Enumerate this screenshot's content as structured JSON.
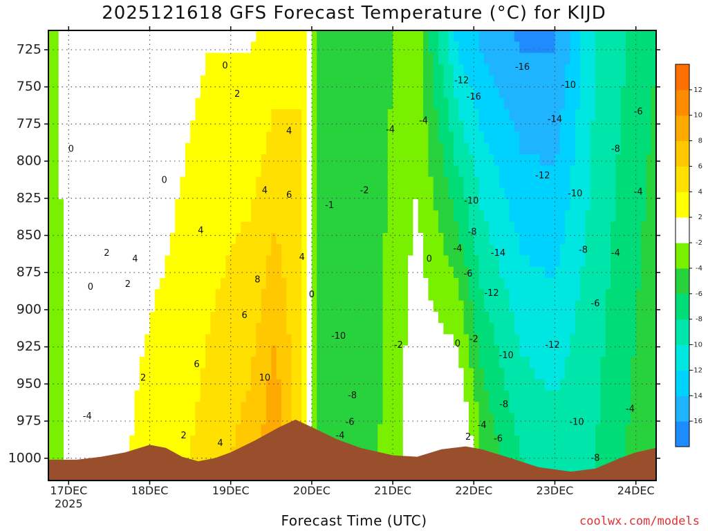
{
  "title": "2025121618 GFS Forecast Temperature (°C) for KIJD",
  "xlabel": "Forecast Time (UTC)",
  "credit": "coolwx.com/models",
  "colors": {
    "terrain": "#9a4f2c",
    "contour_positive": "#1a1a1a",
    "contour_zero": "#c0186c",
    "contour_negative": "#222222",
    "grid": "#555555"
  },
  "chart_data": {
    "type": "heatmap",
    "variable": "Temperature (°C)",
    "x_ticks": [
      "17DEC",
      "18DEC",
      "19DEC",
      "20DEC",
      "21DEC",
      "22DEC",
      "23DEC",
      "24DEC"
    ],
    "x_year": "2025",
    "y_ticks": [
      725,
      750,
      775,
      800,
      825,
      850,
      875,
      900,
      925,
      950,
      975,
      1000
    ],
    "y_range_hpa": [
      712,
      1015
    ],
    "x_range_days": [
      16.75,
      24.25
    ],
    "colorbar": {
      "levels": [
        -18,
        -16,
        -14,
        -12,
        -10,
        -8,
        -6,
        -4,
        -2,
        2,
        4,
        6,
        8,
        10,
        12,
        14
      ],
      "labels": [
        "12",
        "10",
        "8",
        "6",
        "4",
        "2",
        "-2",
        "-4",
        "-6",
        "-8",
        "-10",
        "-12",
        "-14",
        "-16"
      ],
      "colors": [
        "#1e8cff",
        "#1eb4ff",
        "#00d2ff",
        "#00e6e0",
        "#00e6aa",
        "#00dc78",
        "#28d23c",
        "#78f000",
        "#ffffff",
        "#ffff00",
        "#ffe000",
        "#ffc800",
        "#ffaa00",
        "#ff8c00",
        "#ff6e00"
      ]
    },
    "temperature_profile": [
      {
        "day": 16.75,
        "t_725": -3,
        "t_1000": -4
      },
      {
        "day": 17.25,
        "t_725": 1,
        "t_1000": 1
      },
      {
        "day": 17.75,
        "t_725": 1,
        "t_1000": 2
      },
      {
        "day": 18.25,
        "t_725": 1,
        "t_1000": 3
      },
      {
        "day": 18.75,
        "t_725": 2,
        "t_1000": 5
      },
      {
        "day": 19.25,
        "t_725": 2,
        "t_1000": 7
      },
      {
        "day": 19.55,
        "t_725": 3,
        "t_1000": 10
      },
      {
        "day": 19.9,
        "t_725": 4,
        "t_1000": 4
      },
      {
        "day": 20.1,
        "t_725": -6,
        "t_1000": -6
      },
      {
        "day": 20.5,
        "t_725": -6,
        "t_1000": -6
      },
      {
        "day": 21.0,
        "t_725": -4,
        "t_1000": -3
      },
      {
        "day": 21.3,
        "t_725": -3,
        "t_1000": 0
      },
      {
        "day": 21.8,
        "t_725": -12,
        "t_1000": 2
      },
      {
        "day": 22.1,
        "t_725": -14,
        "t_1000": -4
      },
      {
        "day": 22.6,
        "t_725": -16,
        "t_1000": -8
      },
      {
        "day": 23.0,
        "t_725": -16,
        "t_1000": -9
      },
      {
        "day": 23.5,
        "t_725": -10,
        "t_1000": -8
      },
      {
        "day": 24.25,
        "t_725": -6,
        "t_1000": -4
      }
    ],
    "contour_labels": [
      {
        "text": "0",
        "day": 17.03,
        "p": 792
      },
      {
        "text": "0",
        "day": 18.18,
        "p": 813
      },
      {
        "text": "0",
        "day": 18.93,
        "p": 736
      },
      {
        "text": "0",
        "day": 17.27,
        "p": 885
      },
      {
        "text": "2",
        "day": 17.47,
        "p": 862
      },
      {
        "text": "2",
        "day": 17.73,
        "p": 883
      },
      {
        "text": "2",
        "day": 17.92,
        "p": 946
      },
      {
        "text": "2",
        "day": 18.42,
        "p": 985
      },
      {
        "text": "2",
        "day": 19.08,
        "p": 755
      },
      {
        "text": "4",
        "day": 17.82,
        "p": 866
      },
      {
        "text": "4",
        "day": 18.63,
        "p": 847
      },
      {
        "text": "4",
        "day": 19.42,
        "p": 820
      },
      {
        "text": "4",
        "day": 19.72,
        "p": 780
      },
      {
        "text": "4",
        "day": 18.87,
        "p": 990
      },
      {
        "text": "4",
        "day": 19.88,
        "p": 865
      },
      {
        "text": "6",
        "day": 19.72,
        "p": 823
      },
      {
        "text": "6",
        "day": 18.58,
        "p": 937
      },
      {
        "text": "6",
        "day": 19.17,
        "p": 904
      },
      {
        "text": "8",
        "day": 19.33,
        "p": 880
      },
      {
        "text": "10",
        "day": 19.42,
        "p": 946
      },
      {
        "text": "0",
        "day": 20.0,
        "p": 890
      },
      {
        "text": "-4",
        "day": 17.23,
        "p": 972
      },
      {
        "text": "-10",
        "day": 20.33,
        "p": 918
      },
      {
        "text": "-8",
        "day": 20.5,
        "p": 958
      },
      {
        "text": "-6",
        "day": 20.47,
        "p": 976
      },
      {
        "text": "-4",
        "day": 20.35,
        "p": 985
      },
      {
        "text": "-4",
        "day": 20.97,
        "p": 779
      },
      {
        "text": "-2",
        "day": 20.65,
        "p": 820
      },
      {
        "text": "-1",
        "day": 20.22,
        "p": 830
      },
      {
        "text": "-2",
        "day": 21.07,
        "p": 924
      },
      {
        "text": "-4",
        "day": 21.38,
        "p": 773
      },
      {
        "text": "0",
        "day": 21.45,
        "p": 866
      },
      {
        "text": "0",
        "day": 21.8,
        "p": 923
      },
      {
        "text": "-2",
        "day": 22.0,
        "p": 920
      },
      {
        "text": "-12",
        "day": 21.85,
        "p": 746
      },
      {
        "text": "-16",
        "day": 22.0,
        "p": 757
      },
      {
        "text": "-16",
        "day": 22.6,
        "p": 737
      },
      {
        "text": "-14",
        "day": 23.0,
        "p": 772
      },
      {
        "text": "-12",
        "day": 22.85,
        "p": 810
      },
      {
        "text": "-10",
        "day": 23.17,
        "p": 749
      },
      {
        "text": "-10",
        "day": 21.97,
        "p": 827
      },
      {
        "text": "-10",
        "day": 23.25,
        "p": 822
      },
      {
        "text": "-8",
        "day": 21.98,
        "p": 848
      },
      {
        "text": "-14",
        "day": 22.3,
        "p": 862
      },
      {
        "text": "-4",
        "day": 21.8,
        "p": 859
      },
      {
        "text": "-6",
        "day": 21.93,
        "p": 876
      },
      {
        "text": "-12",
        "day": 22.22,
        "p": 889
      },
      {
        "text": "-10",
        "day": 22.4,
        "p": 931
      },
      {
        "text": "-8",
        "day": 22.37,
        "p": 964
      },
      {
        "text": "-4",
        "day": 22.1,
        "p": 978
      },
      {
        "text": "-6",
        "day": 22.3,
        "p": 987
      },
      {
        "text": "2",
        "day": 21.93,
        "p": 986
      },
      {
        "text": "-12",
        "day": 22.97,
        "p": 924
      },
      {
        "text": "-10",
        "day": 23.27,
        "p": 976
      },
      {
        "text": "-8",
        "day": 23.35,
        "p": 860
      },
      {
        "text": "-6",
        "day": 23.5,
        "p": 896
      },
      {
        "text": "-4",
        "day": 23.75,
        "p": 862
      },
      {
        "text": "-4",
        "day": 24.03,
        "p": 821
      },
      {
        "text": "-8",
        "day": 23.75,
        "p": 792
      },
      {
        "text": "-6",
        "day": 24.03,
        "p": 767
      },
      {
        "text": "-4",
        "day": 23.93,
        "p": 967
      },
      {
        "text": "-8",
        "day": 23.5,
        "p": 1000
      }
    ]
  }
}
